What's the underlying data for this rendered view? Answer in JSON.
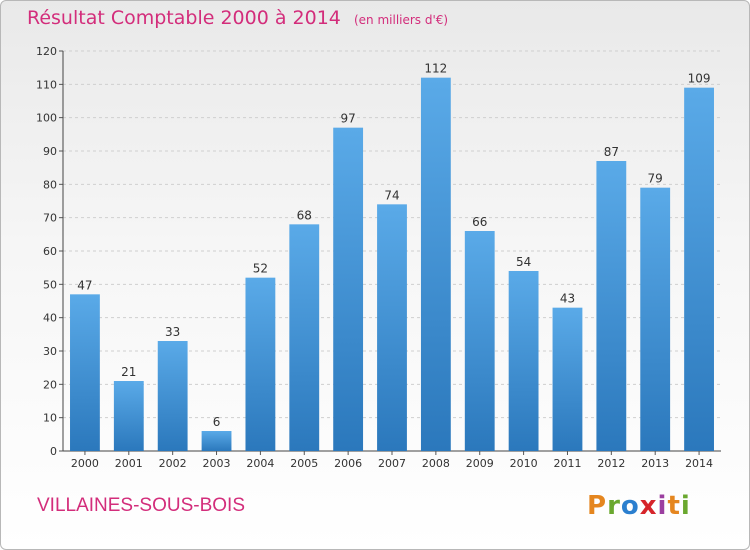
{
  "header": {
    "title": "Résultat Comptable 2000 à 2014",
    "subtitle": "(en milliers d'€)"
  },
  "footer": {
    "place": "VILLAINES-SOUS-BOIS",
    "logo_text": "Proxiti"
  },
  "colors": {
    "title": "#d32d7b",
    "bar_light": "#5aaae8",
    "bar_dark": "#2b78bc",
    "logo": [
      "#e5861f",
      "#6aa82f",
      "#2b7fcf",
      "#d6242a",
      "#9b3fa0",
      "#e5861f",
      "#6aa82f"
    ]
  },
  "chart_data": {
    "type": "bar",
    "title": "Résultat Comptable 2000 à 2014",
    "subtitle": "(en milliers d'€)",
    "xlabel": "",
    "ylabel": "",
    "categories": [
      "2000",
      "2001",
      "2002",
      "2003",
      "2004",
      "2005",
      "2006",
      "2007",
      "2008",
      "2009",
      "2010",
      "2011",
      "2012",
      "2013",
      "2014"
    ],
    "values": [
      47,
      21,
      33,
      6,
      52,
      68,
      97,
      74,
      112,
      66,
      54,
      43,
      87,
      79,
      109
    ],
    "ylim": [
      0,
      120
    ],
    "yticks": [
      0,
      10,
      20,
      30,
      40,
      50,
      60,
      70,
      80,
      90,
      100,
      110,
      120
    ],
    "grid": true,
    "data_labels": true
  }
}
